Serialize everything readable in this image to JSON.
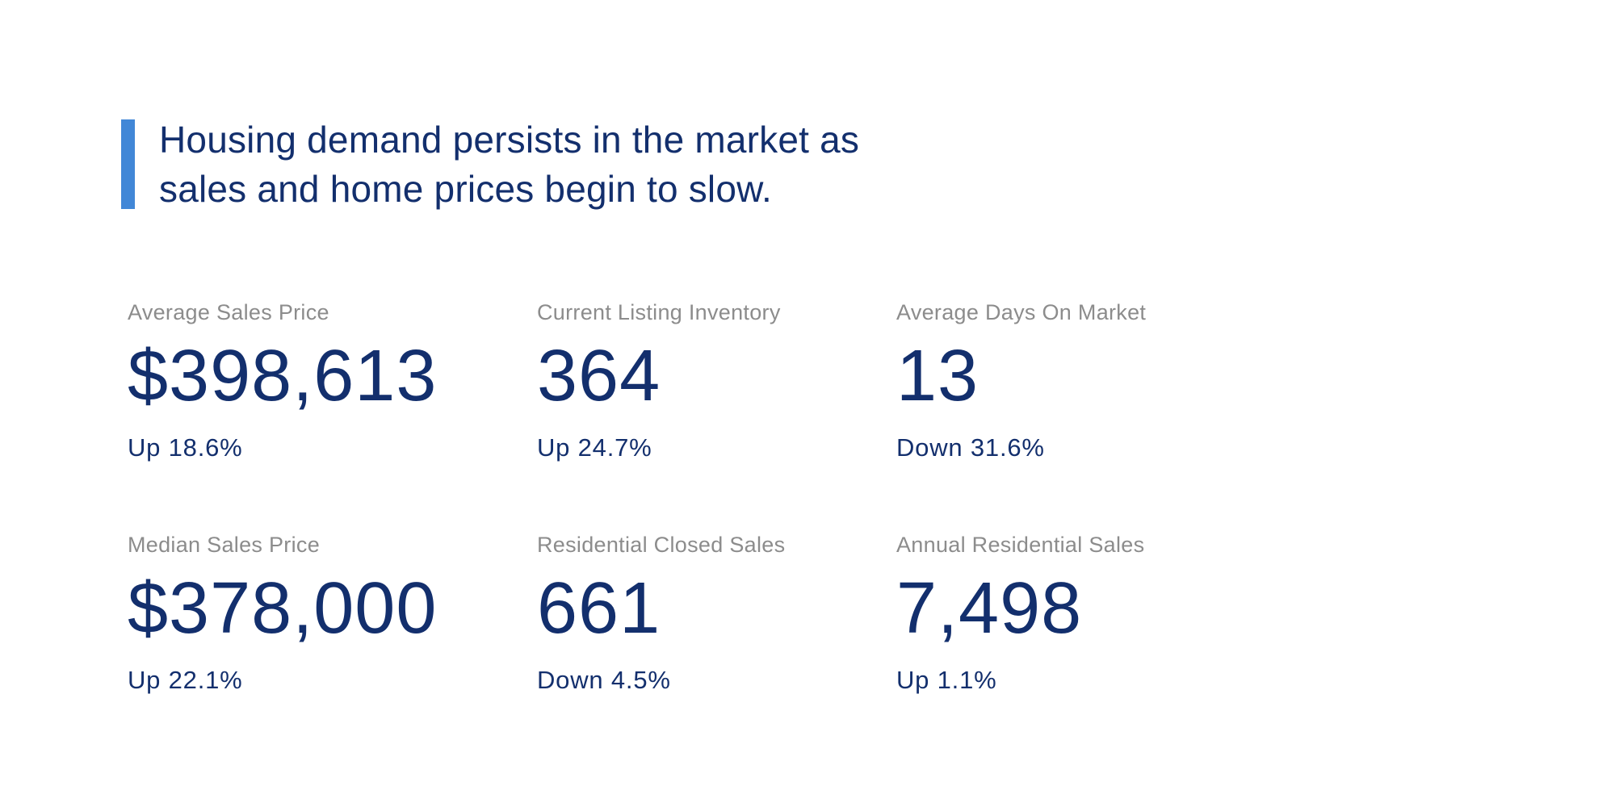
{
  "colors": {
    "accent_bar": "#4187d7",
    "navy_text": "#132f6d",
    "label_gray": "#8c8c8c",
    "background": "#ffffff"
  },
  "headline": {
    "line1": "Housing demand persists in the market as",
    "line2": "sales and home prices begin to slow."
  },
  "stats": [
    {
      "label": "Average Sales Price",
      "value": "$398,613",
      "change": "Up 18.6%"
    },
    {
      "label": "Current Listing Inventory",
      "value": "364",
      "change": "Up 24.7%"
    },
    {
      "label": "Average Days On Market",
      "value": "13",
      "change": "Down 31.6%"
    },
    {
      "label": "Median Sales Price",
      "value": "$378,000",
      "change": "Up 22.1%"
    },
    {
      "label": "Residential Closed Sales",
      "value": "661",
      "change": "Down 4.5%"
    },
    {
      "label": "Annual Residential Sales",
      "value": "7,498",
      "change": "Up 1.1%"
    }
  ]
}
